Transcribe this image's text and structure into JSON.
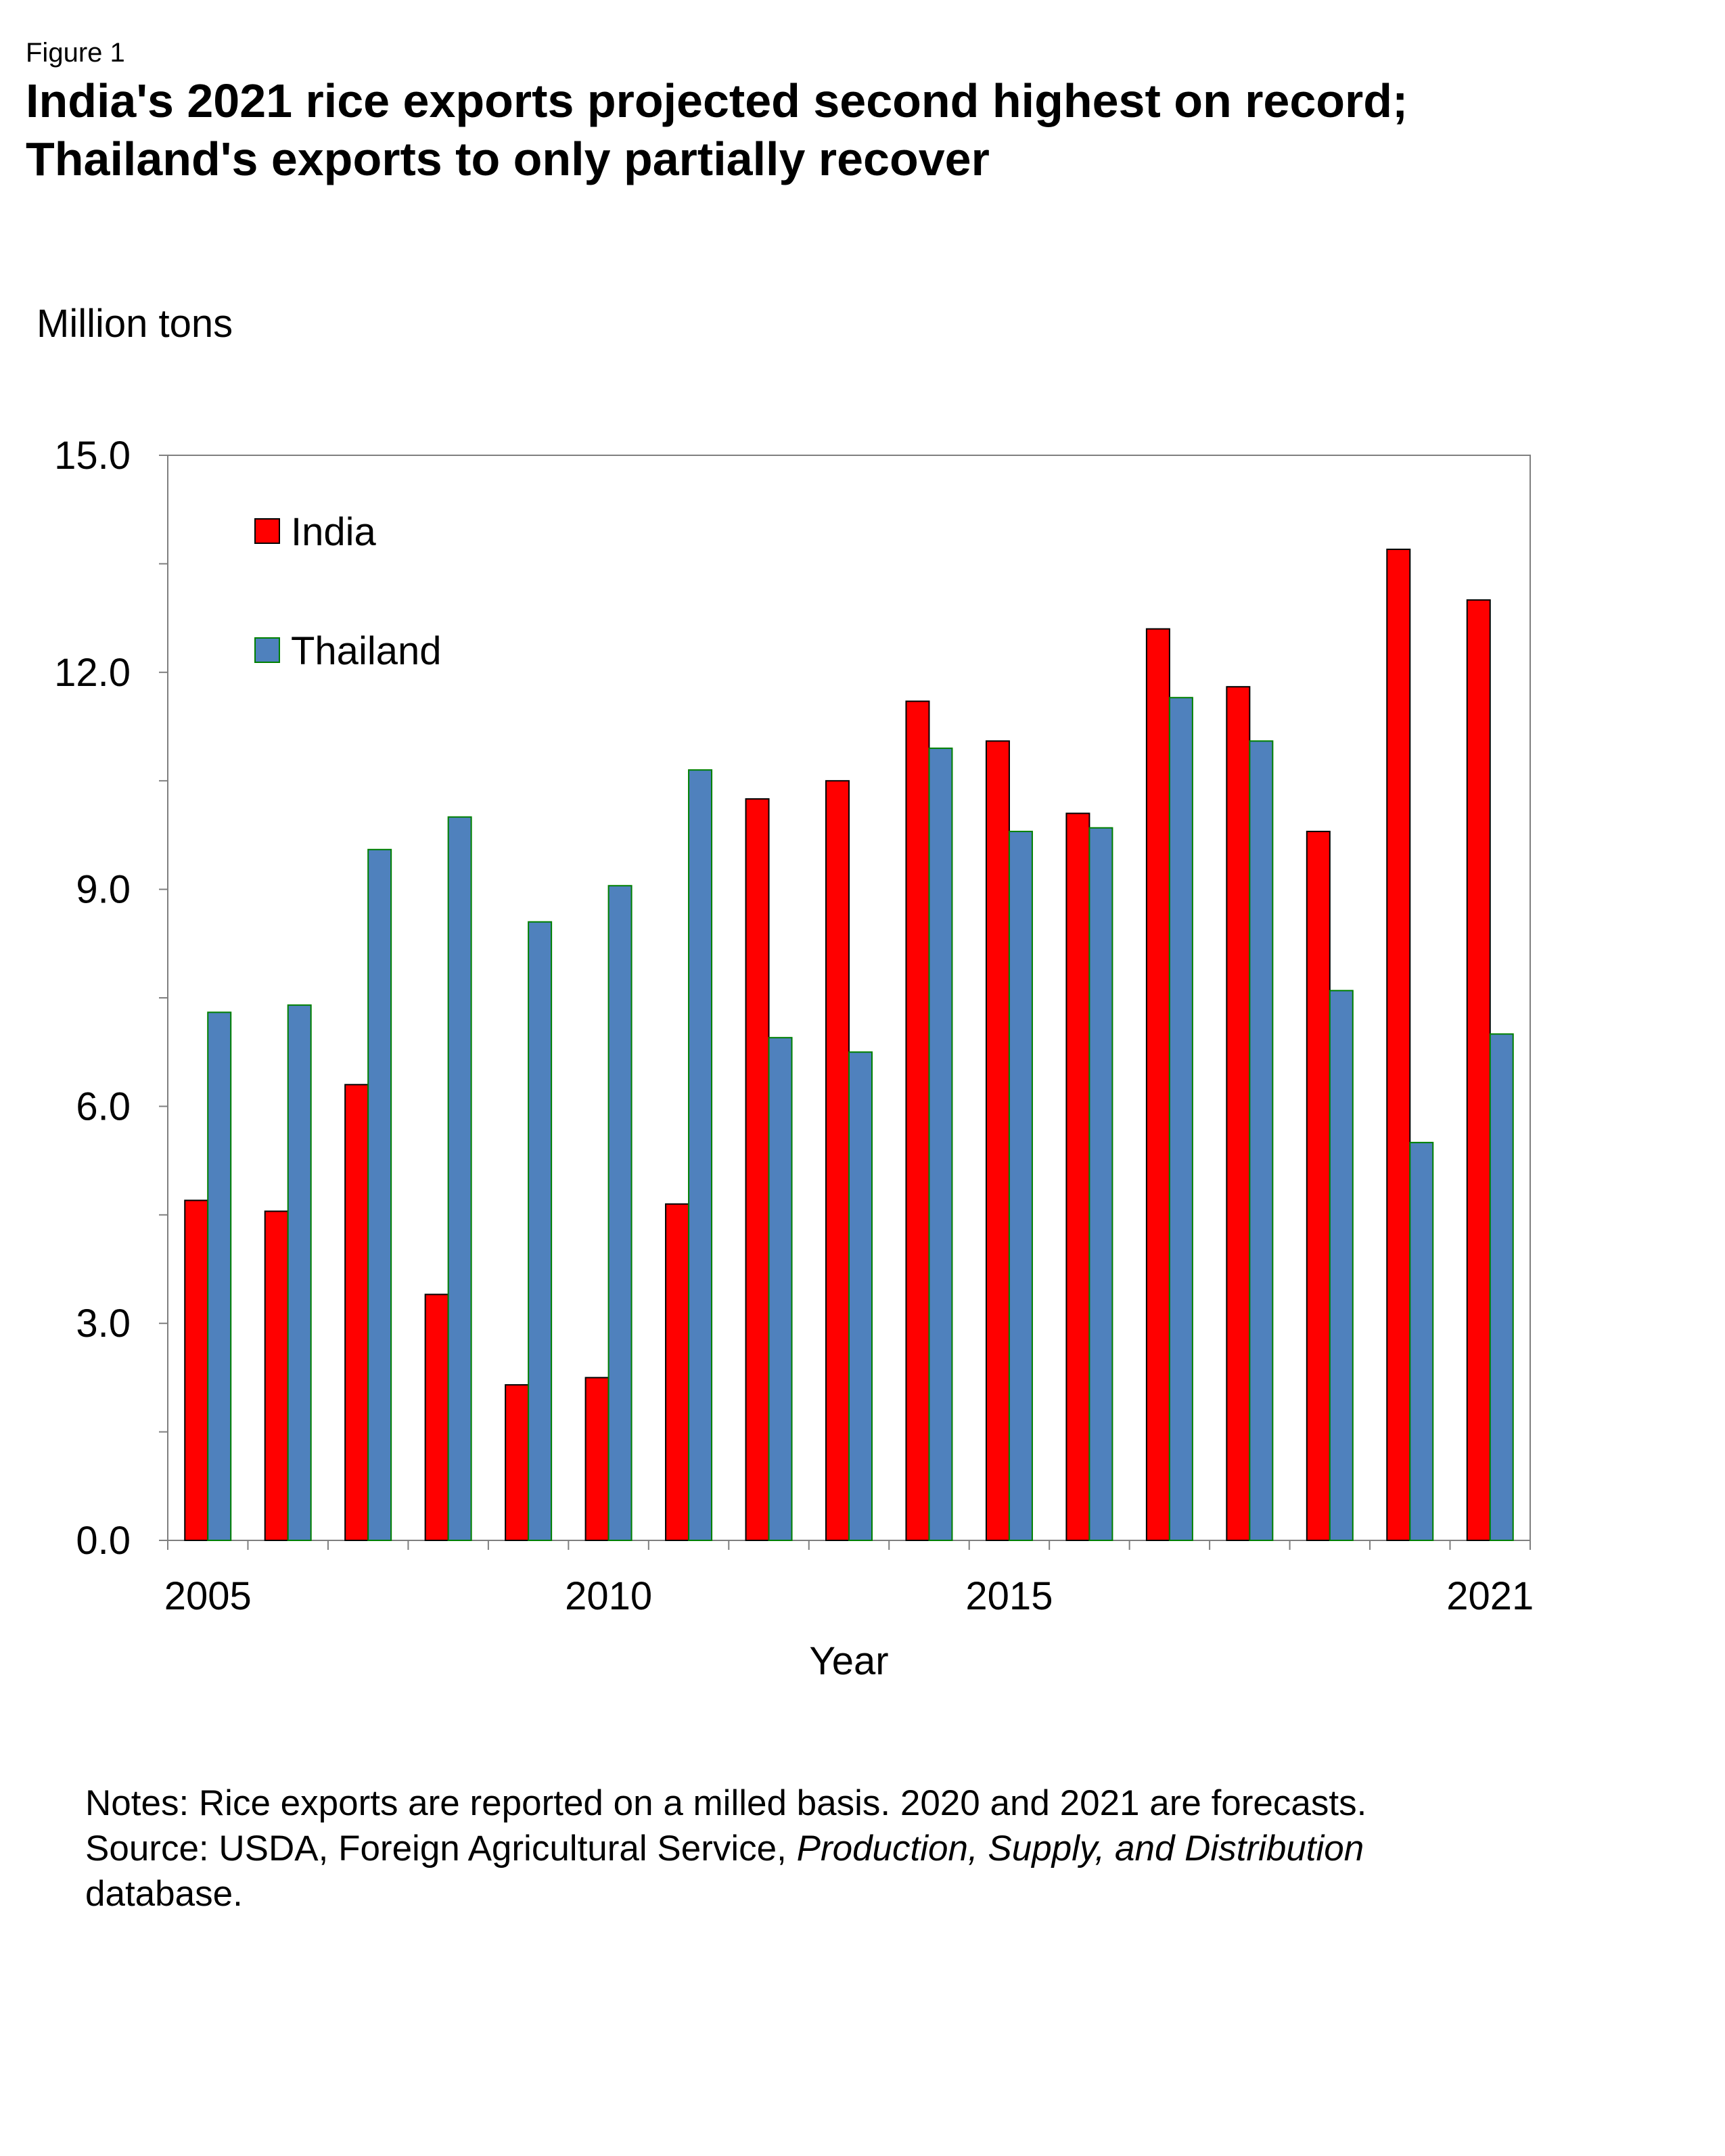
{
  "figure_label": "Figure 1",
  "title_lines": [
    "India's 2021 rice exports projected second highest on record;",
    "Thailand's exports to only partially recover"
  ],
  "chart_data": {
    "type": "bar",
    "ylabel": "Million tons",
    "xlabel": "Year",
    "ylim": [
      0,
      15
    ],
    "y_ticks": [
      0.0,
      3.0,
      6.0,
      9.0,
      12.0,
      15.0
    ],
    "y_tick_labels": [
      "0.0",
      "3.0",
      "6.0",
      "9.0",
      "12.0",
      "15.0"
    ],
    "categories": [
      2005,
      2006,
      2007,
      2008,
      2009,
      2010,
      2011,
      2012,
      2013,
      2014,
      2015,
      2016,
      2017,
      2018,
      2019,
      2020,
      2021
    ],
    "x_tick_labels": [
      {
        "index": 0,
        "label": "2005"
      },
      {
        "index": 5,
        "label": "2010"
      },
      {
        "index": 10,
        "label": "2015"
      },
      {
        "index": 16,
        "label": "2021"
      }
    ],
    "series": [
      {
        "name": "India",
        "color": "#ff0000",
        "values": [
          4.7,
          4.55,
          6.3,
          3.4,
          2.15,
          2.25,
          4.65,
          10.25,
          10.5,
          11.6,
          11.05,
          10.05,
          12.6,
          11.8,
          9.8,
          13.7,
          13.0
        ]
      },
      {
        "name": "Thailand",
        "color": "#4f81bd",
        "values": [
          7.3,
          7.4,
          9.55,
          10.0,
          8.55,
          9.05,
          10.65,
          6.95,
          6.75,
          10.95,
          9.8,
          9.85,
          11.65,
          11.05,
          7.6,
          5.5,
          7.0
        ]
      }
    ],
    "legend_position": "top-left",
    "grid": false
  },
  "notes": {
    "line1": "Notes: Rice exports are reported on a milled basis. 2020 and 2021 are forecasts.",
    "line2_prefix": "Source: USDA, Foreign Agricultural Service, ",
    "line2_italic": "Production, Supply, and Distribution",
    "line3": "database."
  }
}
